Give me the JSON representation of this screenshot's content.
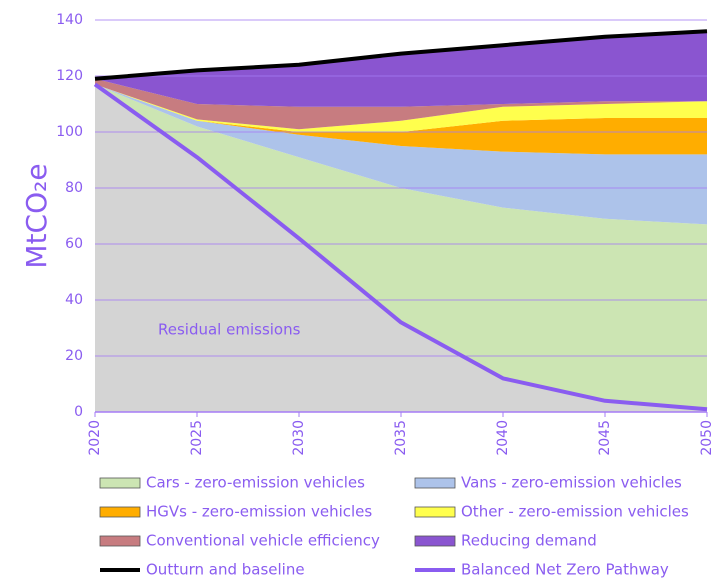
{
  "chart_data": {
    "type": "area",
    "y_label": "MtCO₂e",
    "annotation": "Residual emissions",
    "x": [
      2020,
      2025,
      2030,
      2035,
      2040,
      2045,
      2050
    ],
    "xlim": [
      2020,
      2050
    ],
    "xticks": [
      2020,
      2025,
      2030,
      2035,
      2040,
      2045,
      2050
    ],
    "ylim": [
      0,
      140
    ],
    "yticks": [
      0,
      20,
      40,
      60,
      80,
      100,
      120,
      140
    ],
    "grid": true,
    "residual_color": "#d4d4d4",
    "series": [
      {
        "name": "Cars - zero-emission vehicles",
        "color": "#cce5b3",
        "style": "area",
        "values": [
          0,
          11,
          29,
          48,
          61,
          65,
          66
        ]
      },
      {
        "name": "Vans - zero-emission vehicles",
        "color": "#adc3ea",
        "style": "area",
        "values": [
          0,
          2,
          8,
          15,
          20,
          23,
          25
        ]
      },
      {
        "name": "HGVs - zero-emission vehicles",
        "color": "#ffad00",
        "style": "area",
        "values": [
          0,
          0,
          1,
          5,
          11,
          13,
          13
        ]
      },
      {
        "name": "Other - zero-emission vehicles",
        "color": "#ffff4d",
        "style": "area",
        "values": [
          0,
          0.5,
          1,
          4,
          5,
          5,
          6
        ]
      },
      {
        "name": "Conventional vehicle efficiency",
        "color": "#c77c80",
        "style": "area",
        "values": [
          2,
          5.5,
          8,
          5,
          1,
          1,
          0
        ]
      },
      {
        "name": "Reducing demand",
        "color": "#8a55d0",
        "style": "area",
        "values": [
          0,
          12,
          15,
          19,
          21,
          23,
          25
        ]
      },
      {
        "name": "Outturn and baseline",
        "color": "#000000",
        "style": "line",
        "values": [
          119,
          122,
          124,
          128,
          131,
          134,
          136
        ]
      },
      {
        "name": "Balanced Net Zero Pathway",
        "color": "#8a5cf0",
        "style": "line",
        "base": true,
        "values": [
          117,
          91,
          62,
          32,
          12,
          4,
          1
        ]
      }
    ]
  }
}
